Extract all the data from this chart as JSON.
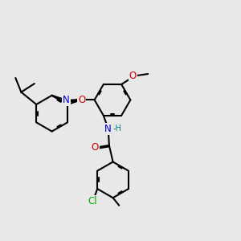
{
  "bg_color": "#e8e8e8",
  "bond_color": "#000000",
  "bond_width": 1.5,
  "atom_colors": {
    "N": "#0000cc",
    "O": "#cc0000",
    "Cl": "#00aa00",
    "H": "#008080",
    "C": "#000000"
  },
  "font_size": 8.5,
  "dbo": 0.025
}
